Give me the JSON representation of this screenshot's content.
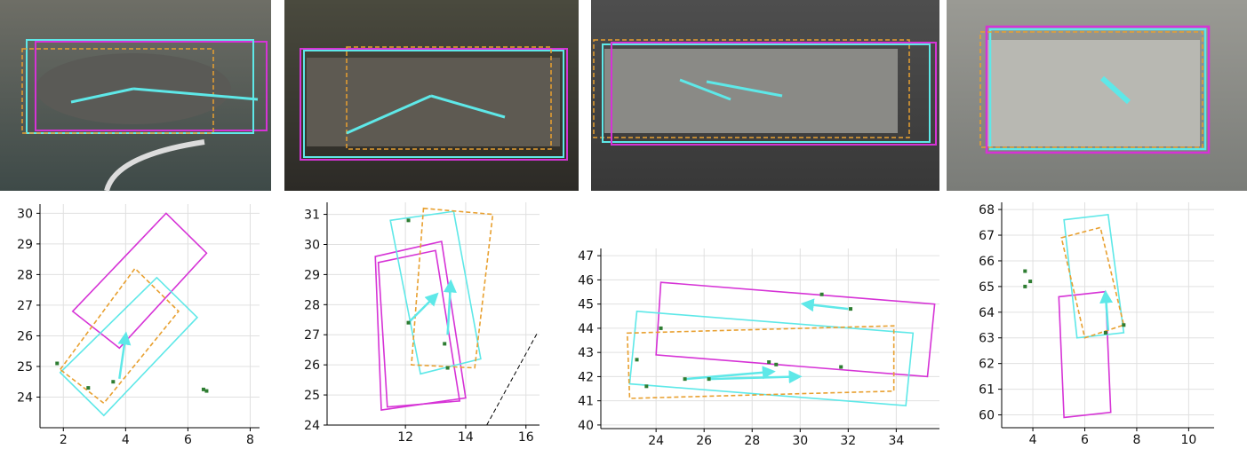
{
  "chart_data": [
    {
      "type": "scatter",
      "xlim": [
        1.25,
        8.3
      ],
      "ylim": [
        23,
        30.3
      ],
      "xticks": [
        2,
        4,
        6,
        8
      ],
      "yticks": [
        24,
        25,
        26,
        27,
        28,
        29,
        30
      ],
      "grid": true,
      "points": {
        "color": "#2e7d32",
        "x": [
          1.8,
          2.8,
          3.6,
          6.5,
          6.6
        ],
        "y": [
          25.1,
          24.3,
          24.5,
          24.25,
          24.2
        ]
      },
      "boxes": [
        {
          "color": "#d633d6",
          "dashed": false,
          "x": [
            2.3,
            5.3,
            6.6,
            3.8
          ],
          "y": [
            26.8,
            30,
            28.7,
            25.6
          ]
        },
        {
          "color": "#5ee8e8",
          "dashed": false,
          "x": [
            1.9,
            5.0,
            6.3,
            3.3
          ],
          "y": [
            24.8,
            27.9,
            26.6,
            23.4
          ]
        },
        {
          "color": "#e8a030",
          "dashed": true,
          "x": [
            1.9,
            4.3,
            5.7,
            3.3
          ],
          "y": [
            24.9,
            28.2,
            26.8,
            23.8
          ]
        }
      ],
      "arrows": [
        {
          "color": "#5ee8e8",
          "x": [
            3.8,
            4.0
          ],
          "y": [
            24.6,
            26.0
          ]
        }
      ]
    },
    {
      "type": "scatter",
      "xlim": [
        9.4,
        16.45
      ],
      "ylim": [
        24,
        31.4
      ],
      "xticks": [
        12,
        14,
        16
      ],
      "yticks": [
        24,
        25,
        26,
        27,
        28,
        29,
        30,
        31
      ],
      "grid": true,
      "points": {
        "color": "#2e7d32",
        "x": [
          12.1,
          12.1,
          13.3,
          13.4
        ],
        "y": [
          30.8,
          27.4,
          26.7,
          25.9
        ]
      },
      "boxes": [
        {
          "color": "#d633d6",
          "dashed": false,
          "x": [
            11.0,
            13.2,
            14.0,
            11.2
          ],
          "y": [
            29.6,
            30.1,
            24.9,
            24.5
          ]
        },
        {
          "color": "#d633d6",
          "dashed": false,
          "x": [
            11.1,
            13.0,
            13.8,
            11.4
          ],
          "y": [
            29.4,
            29.8,
            24.8,
            24.6
          ]
        },
        {
          "color": "#5ee8e8",
          "dashed": false,
          "x": [
            11.5,
            13.6,
            14.5,
            12.5
          ],
          "y": [
            30.8,
            31.1,
            26.2,
            25.7
          ]
        },
        {
          "color": "#e8a030",
          "dashed": true,
          "x": [
            12.6,
            14.9,
            14.3,
            12.2
          ],
          "y": [
            31.2,
            31.0,
            25.9,
            26.0
          ]
        }
      ],
      "lines": [
        {
          "color": "#000000",
          "dashed": true,
          "x": [
            14.7,
            16.4
          ],
          "y": [
            24,
            27.1
          ]
        }
      ],
      "arrows": [
        {
          "color": "#5ee8e8",
          "x": [
            12.1,
            13.0
          ],
          "y": [
            27.4,
            28.3
          ]
        },
        {
          "color": "#5ee8e8",
          "x": [
            13.4,
            13.5
          ],
          "y": [
            27.0,
            28.7
          ]
        }
      ]
    },
    {
      "type": "scatter",
      "xlim": [
        21.7,
        35.8
      ],
      "ylim": [
        39.85,
        47.3
      ],
      "xticks": [
        24,
        26,
        28,
        30,
        32,
        34
      ],
      "yticks": [
        40,
        41,
        42,
        43,
        44,
        45,
        46,
        47
      ],
      "grid": true,
      "points": {
        "color": "#2e7d32",
        "x": [
          23.2,
          23.6,
          24.2,
          25.2,
          26.2,
          28.7,
          29.0,
          30.9,
          31.7,
          32.1
        ],
        "y": [
          42.7,
          41.6,
          44.0,
          41.9,
          41.9,
          42.6,
          42.5,
          45.4,
          42.4,
          44.8
        ]
      },
      "boxes": [
        {
          "color": "#d633d6",
          "dashed": false,
          "x": [
            24.2,
            35.6,
            35.3,
            24.0
          ],
          "y": [
            45.9,
            45.0,
            42.0,
            42.9
          ]
        },
        {
          "color": "#5ee8e8",
          "dashed": false,
          "x": [
            23.2,
            34.7,
            34.4,
            22.9
          ],
          "y": [
            44.7,
            43.8,
            40.8,
            41.7
          ]
        },
        {
          "color": "#e8a030",
          "dashed": true,
          "x": [
            22.8,
            33.9,
            33.9,
            22.9
          ],
          "y": [
            43.8,
            44.1,
            41.4,
            41.1
          ]
        }
      ],
      "arrows": [
        {
          "color": "#5ee8e8",
          "x": [
            32.0,
            30.2
          ],
          "y": [
            44.8,
            45.0
          ]
        },
        {
          "color": "#5ee8e8",
          "x": [
            25.2,
            28.8
          ],
          "y": [
            41.9,
            42.2
          ]
        },
        {
          "color": "#5ee8e8",
          "x": [
            26.2,
            29.9
          ],
          "y": [
            41.9,
            42.0
          ]
        }
      ]
    },
    {
      "type": "scatter",
      "xlim": [
        2.8,
        10.98
      ],
      "ylim": [
        59.5,
        68.28
      ],
      "xticks": [
        4,
        6,
        8,
        10
      ],
      "yticks": [
        60,
        61,
        62,
        63,
        64,
        65,
        66,
        67,
        68
      ],
      "grid": true,
      "points": {
        "color": "#2e7d32",
        "x": [
          3.7,
          3.7,
          3.9,
          6.8,
          7.5
        ],
        "y": [
          65.6,
          65.0,
          65.2,
          63.2,
          63.5
        ]
      },
      "boxes": [
        {
          "color": "#d633d6",
          "dashed": false,
          "x": [
            5.0,
            6.8,
            7.0,
            5.2
          ],
          "y": [
            64.6,
            64.8,
            60.1,
            59.9
          ]
        },
        {
          "color": "#5ee8e8",
          "dashed": false,
          "x": [
            5.2,
            6.9,
            7.5,
            5.7
          ],
          "y": [
            67.6,
            67.8,
            63.2,
            63.0
          ]
        },
        {
          "color": "#e8a030",
          "dashed": true,
          "x": [
            5.1,
            6.6,
            7.5,
            6.0
          ],
          "y": [
            66.9,
            67.3,
            63.5,
            63.0
          ]
        }
      ],
      "arrows": [
        {
          "color": "#5ee8e8",
          "x": [
            6.9,
            6.8
          ],
          "y": [
            63.3,
            64.7
          ]
        }
      ]
    }
  ]
}
